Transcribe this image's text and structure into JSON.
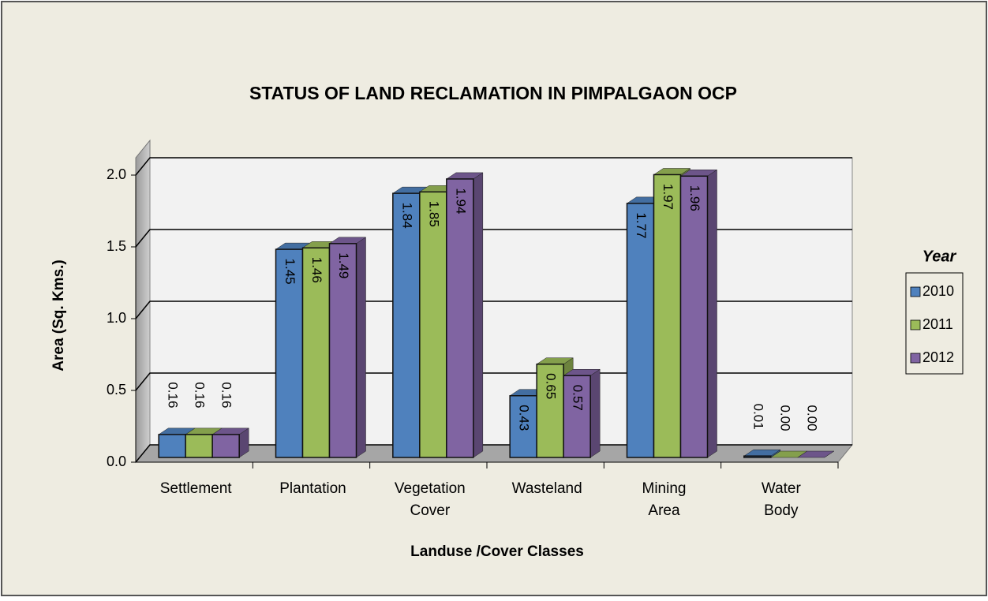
{
  "chart_data": {
    "type": "bar",
    "title": "STATUS OF LAND RECLAMATION IN PIMPALGAON OCP",
    "x_label": "Landuse /Cover Classes",
    "y_label": "Area (Sq. Kms.)",
    "legend_title": "Year",
    "legend": "right",
    "grid": true,
    "categories": [
      "Settlement",
      "Plantation",
      "Vegetation Cover",
      "Wasteland",
      "Mining Area",
      "Water Body"
    ],
    "series": [
      {
        "name": "2010",
        "color": "#4f81bd",
        "values": [
          0.16,
          1.45,
          1.84,
          0.43,
          1.77,
          0.01
        ],
        "value_labels": [
          "0.16",
          "1.45",
          "1.84",
          "0.43",
          "1.77",
          "0.01"
        ]
      },
      {
        "name": "2011",
        "color": "#9bbb59",
        "values": [
          0.16,
          1.46,
          1.85,
          0.65,
          1.97,
          0
        ],
        "value_labels": [
          "0.16",
          "1.46",
          "1.85",
          "0.65",
          "1.97",
          "0.00"
        ]
      },
      {
        "name": "2012",
        "color": "#8064a2",
        "values": [
          0.16,
          1.49,
          1.94,
          0.57,
          1.96,
          0
        ],
        "value_labels": [
          "0.16",
          "1.49",
          "1.94",
          "0.57",
          "1.96",
          "0.00"
        ]
      }
    ],
    "ylim": [
      0,
      2
    ],
    "yticks": [
      {
        "value": 0,
        "label": "0.0"
      },
      {
        "value": 0.5,
        "label": "0.5"
      },
      {
        "value": 1,
        "label": "1.0"
      },
      {
        "value": 1.5,
        "label": "1.5"
      },
      {
        "value": 2,
        "label": "2.0"
      }
    ]
  }
}
